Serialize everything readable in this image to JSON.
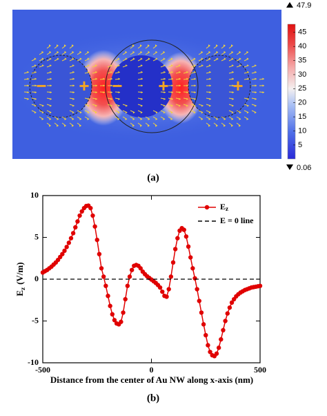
{
  "panel_a": {
    "label": "(a)",
    "charges": [
      "−",
      "+",
      "−",
      "+",
      "+"
    ],
    "colorbar": {
      "lim": [
        0.06,
        47.9
      ],
      "ticks": [
        5,
        10,
        15,
        20,
        25,
        30,
        35,
        40,
        45
      ]
    }
  },
  "panel_b": {
    "label": "(b)"
  },
  "chart_data": {
    "type": "line",
    "xlabel": "Distance from the center of Au NW along x-axis (nm)",
    "ylabel": "E",
    "ylabel_sub": "z",
    "ylabel_unit": "(V/m)",
    "xlim": [
      -500,
      500
    ],
    "ylim": [
      -10,
      10
    ],
    "xticks": [
      -500,
      0,
      500
    ],
    "yticks": [
      -10,
      -5,
      0,
      5,
      10
    ],
    "legend": "upper right",
    "series": [
      {
        "name": "E",
        "name_sub": "z",
        "color": "#e00000",
        "marker": true,
        "x": [
          -500,
          -490,
          -480,
          -470,
          -460,
          -450,
          -440,
          -430,
          -420,
          -410,
          -400,
          -390,
          -380,
          -370,
          -360,
          -350,
          -340,
          -330,
          -320,
          -310,
          -300,
          -290,
          -280,
          -270,
          -260,
          -250,
          -240,
          -230,
          -220,
          -210,
          -200,
          -190,
          -180,
          -170,
          -160,
          -150,
          -140,
          -130,
          -120,
          -110,
          -100,
          -90,
          -80,
          -70,
          -60,
          -50,
          -40,
          -30,
          -20,
          -10,
          0,
          10,
          20,
          30,
          40,
          50,
          60,
          70,
          80,
          90,
          100,
          110,
          120,
          130,
          140,
          150,
          160,
          170,
          180,
          190,
          200,
          210,
          220,
          230,
          240,
          250,
          260,
          270,
          280,
          290,
          300,
          310,
          320,
          330,
          340,
          350,
          360,
          370,
          380,
          390,
          400,
          410,
          420,
          430,
          440,
          450,
          460,
          470,
          480,
          490,
          500
        ],
        "values": [
          0.8,
          0.95,
          1.1,
          1.3,
          1.5,
          1.75,
          2.0,
          2.3,
          2.65,
          3.0,
          3.4,
          3.85,
          4.35,
          4.9,
          5.5,
          6.2,
          6.9,
          7.6,
          8.1,
          8.5,
          8.75,
          8.8,
          8.5,
          7.6,
          6.3,
          4.7,
          3.0,
          1.3,
          0.3,
          -0.8,
          -2.0,
          -3.2,
          -4.2,
          -4.9,
          -5.3,
          -5.4,
          -5.1,
          -4.0,
          -2.4,
          -0.8,
          0.3,
          1.1,
          1.6,
          1.7,
          1.6,
          1.3,
          0.9,
          0.6,
          0.35,
          0.15,
          -0.05,
          -0.25,
          -0.45,
          -0.7,
          -1.0,
          -1.5,
          -2.0,
          -2.1,
          -1.2,
          0.3,
          2.0,
          3.6,
          4.9,
          5.8,
          6.1,
          5.9,
          5.1,
          3.9,
          2.6,
          1.3,
          0.1,
          -1.2,
          -2.6,
          -4.0,
          -5.4,
          -6.7,
          -7.9,
          -8.7,
          -9.1,
          -9.2,
          -8.9,
          -8.2,
          -7.2,
          -6.1,
          -5.0,
          -4.1,
          -3.4,
          -2.8,
          -2.4,
          -2.05,
          -1.8,
          -1.6,
          -1.45,
          -1.3,
          -1.2,
          -1.1,
          -1.0,
          -0.95,
          -0.9,
          -0.85,
          -0.8
        ]
      },
      {
        "name": "E = 0 line",
        "color": "#000000",
        "dash": true,
        "marker": false,
        "x": [
          -500,
          500
        ],
        "values": [
          0,
          0
        ]
      }
    ]
  }
}
